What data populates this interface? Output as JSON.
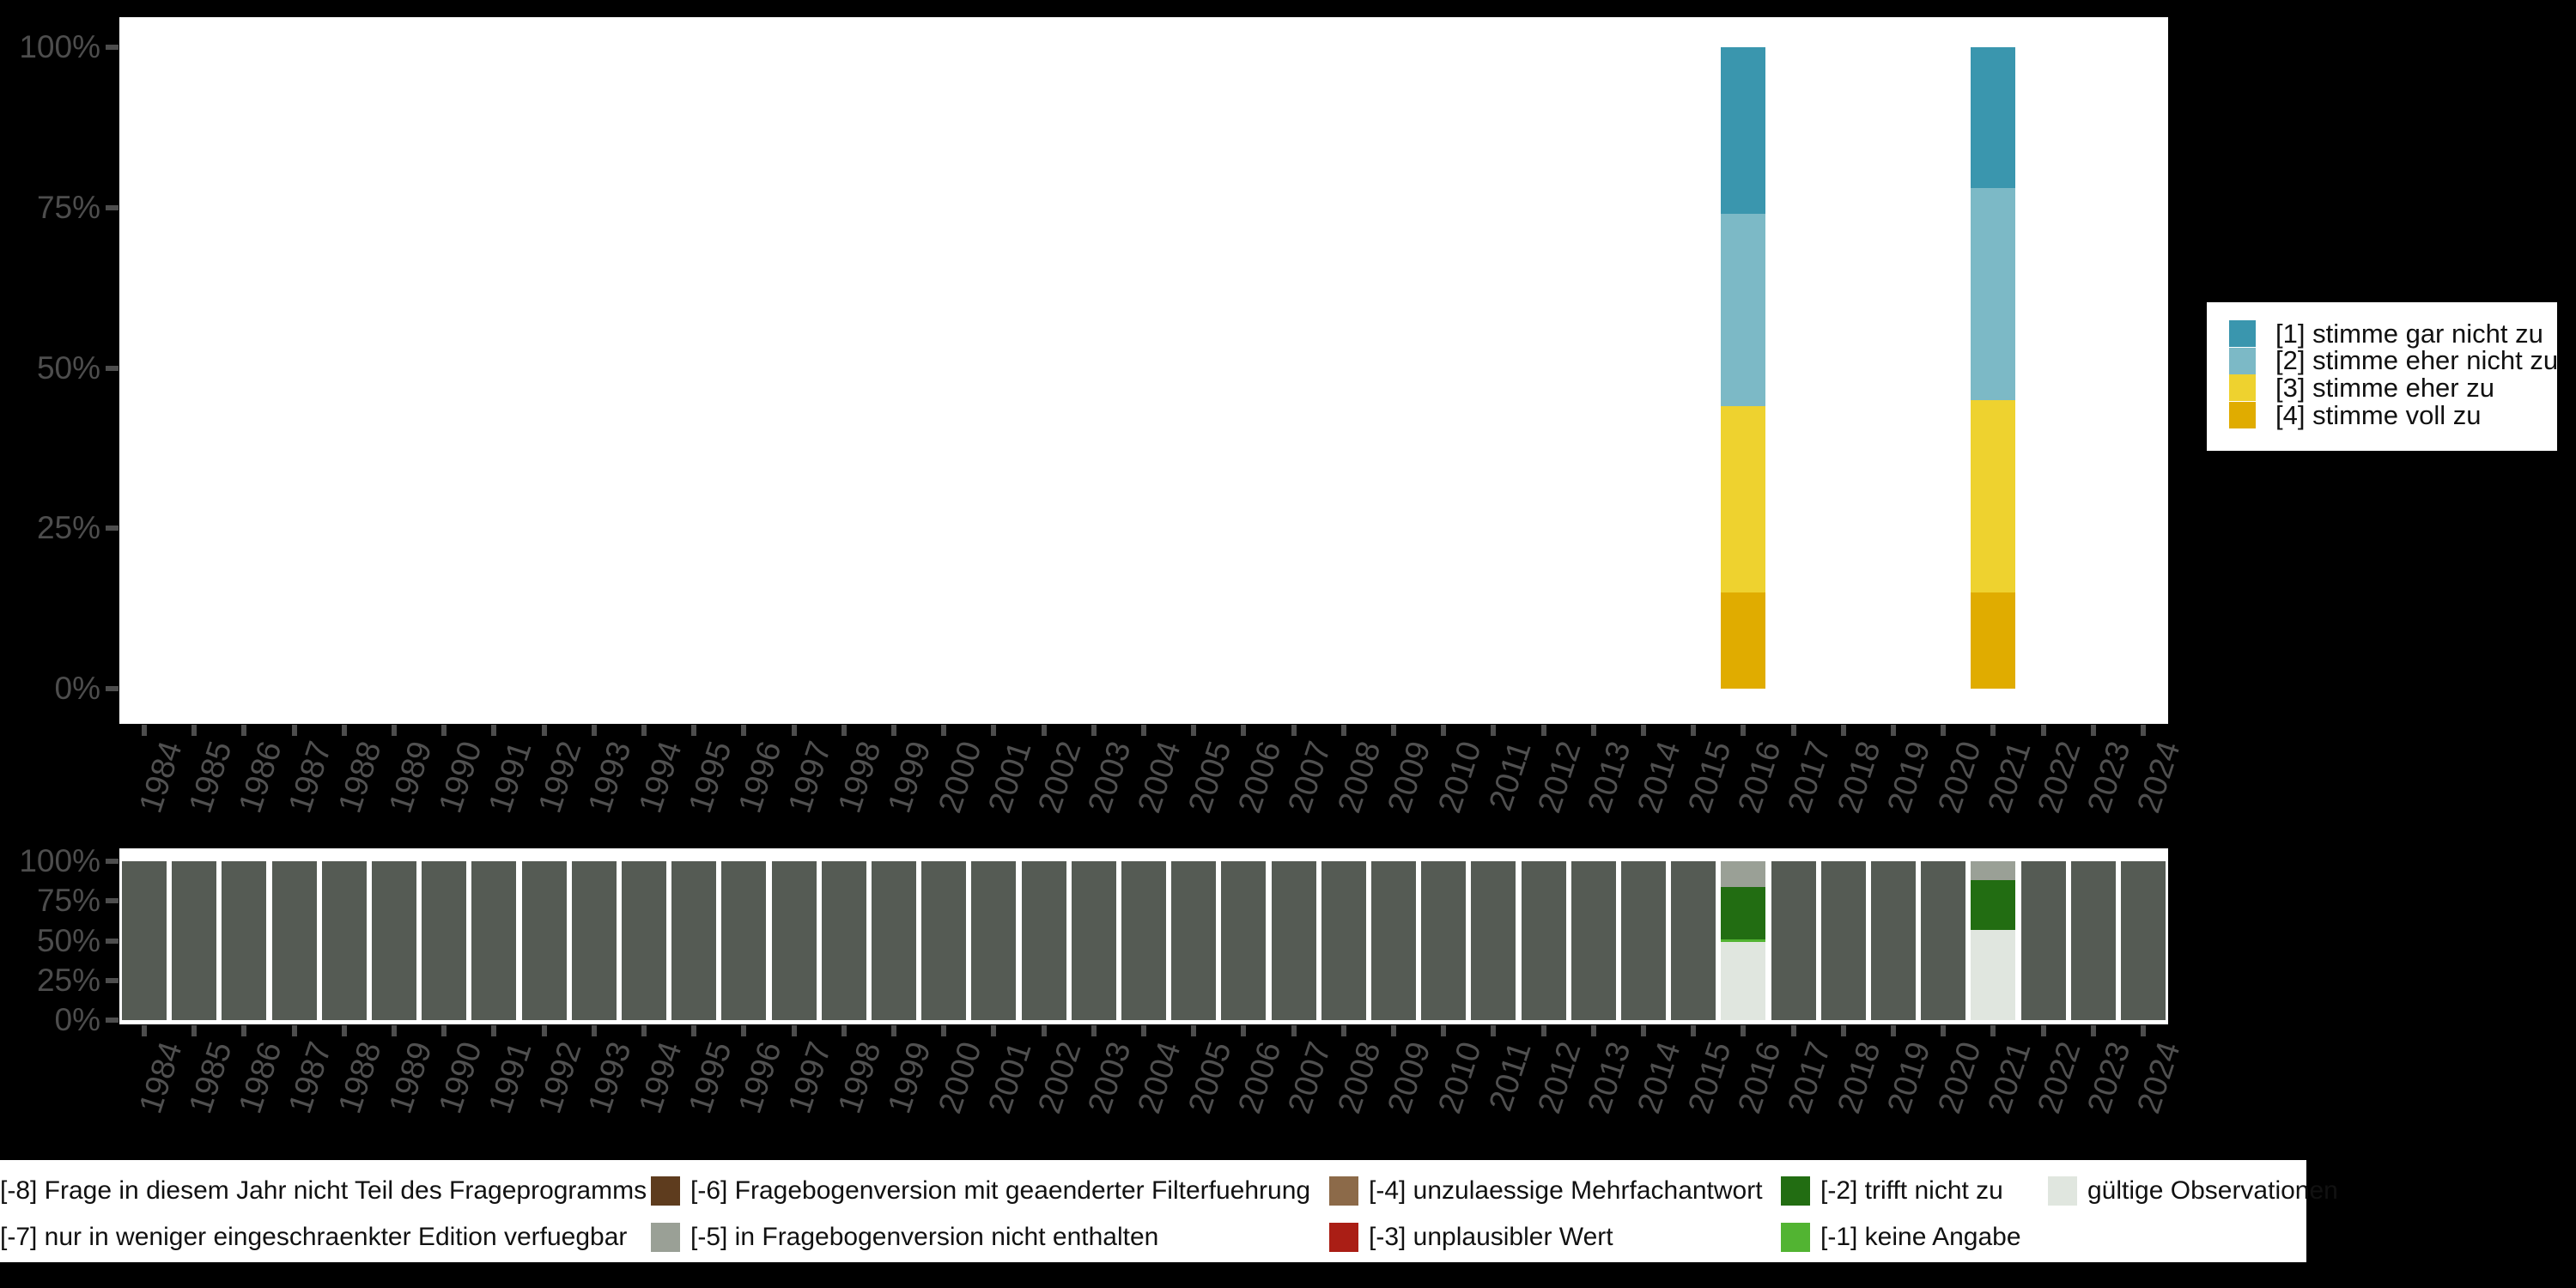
{
  "background_color": "#000000",
  "axis": {
    "text_color": "#4d4d4d",
    "tick_color": "#4d4d4d",
    "y_tick_labels": [
      "0%",
      "25%",
      "50%",
      "75%",
      "100%"
    ]
  },
  "years": [
    "1984",
    "1985",
    "1986",
    "1987",
    "1988",
    "1989",
    "1990",
    "1991",
    "1992",
    "1993",
    "1994",
    "1995",
    "1996",
    "1997",
    "1998",
    "1999",
    "2000",
    "2001",
    "2002",
    "2003",
    "2004",
    "2005",
    "2006",
    "2007",
    "2008",
    "2009",
    "2010",
    "2011",
    "2012",
    "2013",
    "2014",
    "2015",
    "2016",
    "2017",
    "2018",
    "2019",
    "2020",
    "2021",
    "2022",
    "2023",
    "2024"
  ],
  "chart_data": [
    {
      "id": "values-by-year",
      "type": "bar",
      "stacked": true,
      "title": "",
      "xlabel": "",
      "ylabel": "",
      "ylim": [
        0,
        100
      ],
      "grid": false,
      "y_tick_labels": [
        "0%",
        "25%",
        "50%",
        "75%",
        "100%"
      ],
      "categories": [
        "1984",
        "1985",
        "1986",
        "1987",
        "1988",
        "1989",
        "1990",
        "1991",
        "1992",
        "1993",
        "1994",
        "1995",
        "1996",
        "1997",
        "1998",
        "1999",
        "2000",
        "2001",
        "2002",
        "2003",
        "2004",
        "2005",
        "2006",
        "2007",
        "2008",
        "2009",
        "2010",
        "2011",
        "2012",
        "2013",
        "2014",
        "2015",
        "2016",
        "2017",
        "2018",
        "2019",
        "2020",
        "2021",
        "2022",
        "2023",
        "2024"
      ],
      "legend": {
        "position": "right",
        "entries": [
          {
            "label": "[1] stimme gar nicht zu",
            "color": "#3a96ae"
          },
          {
            "label": "[2] stimme eher nicht zu",
            "color": "#7cb9c6"
          },
          {
            "label": "[3] stimme eher zu",
            "color": "#eed22f"
          },
          {
            "label": "[4] stimme voll zu",
            "color": "#e0ac00"
          }
        ]
      },
      "default_bar": [],
      "bars": {
        "2016": [
          {
            "label": "[1] stimme gar nicht zu",
            "value": 26,
            "color": "#3a96ae"
          },
          {
            "label": "[2] stimme eher nicht zu",
            "value": 30,
            "color": "#7cb9c6"
          },
          {
            "label": "[3] stimme eher zu",
            "value": 29,
            "color": "#eed22f"
          },
          {
            "label": "[4] stimme voll zu",
            "value": 15,
            "color": "#e0ac00"
          }
        ],
        "2021": [
          {
            "label": "[1] stimme gar nicht zu",
            "value": 22,
            "color": "#3a96ae"
          },
          {
            "label": "[2] stimme eher nicht zu",
            "value": 33,
            "color": "#7cb9c6"
          },
          {
            "label": "[3] stimme eher zu",
            "value": 30,
            "color": "#eed22f"
          },
          {
            "label": "[4] stimme voll zu",
            "value": 15,
            "color": "#e0ac00"
          }
        ]
      }
    },
    {
      "id": "missings-by-year",
      "type": "bar",
      "stacked": true,
      "title": "",
      "xlabel": "",
      "ylabel": "",
      "ylim": [
        0,
        100
      ],
      "grid": false,
      "y_tick_labels": [
        "0%",
        "25%",
        "50%",
        "75%",
        "100%"
      ],
      "categories": [
        "1984",
        "1985",
        "1986",
        "1987",
        "1988",
        "1989",
        "1990",
        "1991",
        "1992",
        "1993",
        "1994",
        "1995",
        "1996",
        "1997",
        "1998",
        "1999",
        "2000",
        "2001",
        "2002",
        "2003",
        "2004",
        "2005",
        "2006",
        "2007",
        "2008",
        "2009",
        "2010",
        "2011",
        "2012",
        "2013",
        "2014",
        "2015",
        "2016",
        "2017",
        "2018",
        "2019",
        "2020",
        "2021",
        "2022",
        "2023",
        "2024"
      ],
      "legend": {
        "position": "bottom",
        "rows": [
          [
            {
              "label": "[-8] Frage in diesem Jahr nicht Teil des Frageprogramms",
              "color": "#555b54",
              "swatch_visible": false
            },
            {
              "label": "[-6] Fragebogenversion mit geaenderter Filterfuehrung",
              "color": "#5e3c1e",
              "swatch_visible": true
            },
            {
              "label": "[-4] unzulaessige Mehrfachantwort",
              "color": "#8c6a49",
              "swatch_visible": true
            },
            {
              "label": "[-2] trifft nicht zu",
              "color": "#226d12",
              "swatch_visible": true
            },
            {
              "label": "gültige Observationen",
              "color": "#e0e6df",
              "swatch_visible": true
            }
          ],
          [
            {
              "label": "[-7] nur in weniger eingeschraenkter Edition verfuegbar",
              "color": "#9aa096",
              "swatch_visible": false
            },
            {
              "label": "[-5] in Fragebogenversion nicht enthalten",
              "color": "#9aa096",
              "swatch_visible": true
            },
            {
              "label": "[-3] unplausibler Wert",
              "color": "#aa1e15",
              "swatch_visible": true
            },
            {
              "label": "[-1] keine Angabe",
              "color": "#52b432",
              "swatch_visible": true
            },
            null
          ]
        ]
      },
      "default_bar": [
        {
          "label": "[-8] Frage in diesem Jahr nicht Teil des Frageprogramms",
          "value": 100,
          "color": "#555b54"
        }
      ],
      "bars": {
        "2016": [
          {
            "label": "[-5] in Fragebogenversion nicht enthalten",
            "value": 16,
            "color": "#9aa096"
          },
          {
            "label": "[-2] trifft nicht zu",
            "value": 33,
            "color": "#226d12"
          },
          {
            "label": "[-1] keine Angabe",
            "value": 2,
            "color": "#52b432"
          },
          {
            "label": "gültige Observationen",
            "value": 49,
            "color": "#e0e6df"
          }
        ],
        "2021": [
          {
            "label": "[-5] in Fragebogenversion nicht enthalten",
            "value": 12,
            "color": "#9aa096"
          },
          {
            "label": "[-2] trifft nicht zu",
            "value": 31,
            "color": "#226d12"
          },
          {
            "label": "gültige Observationen",
            "value": 57,
            "color": "#e0e6df"
          }
        ]
      }
    }
  ]
}
